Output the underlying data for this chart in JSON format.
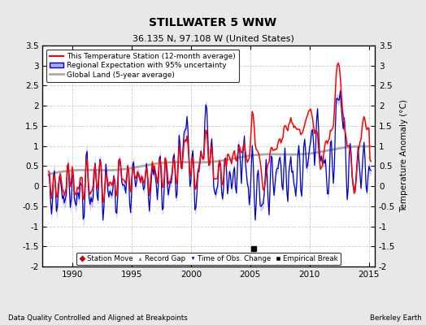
{
  "title": "STILLWATER 5 WNW",
  "subtitle": "36.135 N, 97.108 W (United States)",
  "ylabel": "Temperature Anomaly (°C)",
  "xlabel_left": "Data Quality Controlled and Aligned at Breakpoints",
  "xlabel_right": "Berkeley Earth",
  "ylim": [
    -2.0,
    3.5
  ],
  "xlim": [
    1987.5,
    2015.5
  ],
  "yticks": [
    -2,
    -1.5,
    -1,
    -0.5,
    0,
    0.5,
    1,
    1.5,
    2,
    2.5,
    3,
    3.5
  ],
  "xticks": [
    1990,
    1995,
    2000,
    2005,
    2010,
    2015
  ],
  "background_color": "#e8e8e8",
  "plot_bg_color": "#ffffff",
  "grid_color": "#cccccc",
  "station_color": "#ff0000",
  "regional_color": "#0000cc",
  "regional_fill_color": "#aaaaee",
  "global_color": "#aaaaaa",
  "legend_items": [
    "This Temperature Station (12-month average)",
    "Regional Expectation with 95% uncertainty",
    "Global Land (5-year average)"
  ],
  "marker_legend": [
    [
      "Station Move",
      "#cc0000",
      "D"
    ],
    [
      "Record Gap",
      "#00aa00",
      "^"
    ],
    [
      "Time of Obs. Change",
      "#0000cc",
      "v"
    ],
    [
      "Empirical Break",
      "#000000",
      "s"
    ]
  ],
  "empirical_break_x": 2005.3,
  "empirical_break_y": -1.55
}
